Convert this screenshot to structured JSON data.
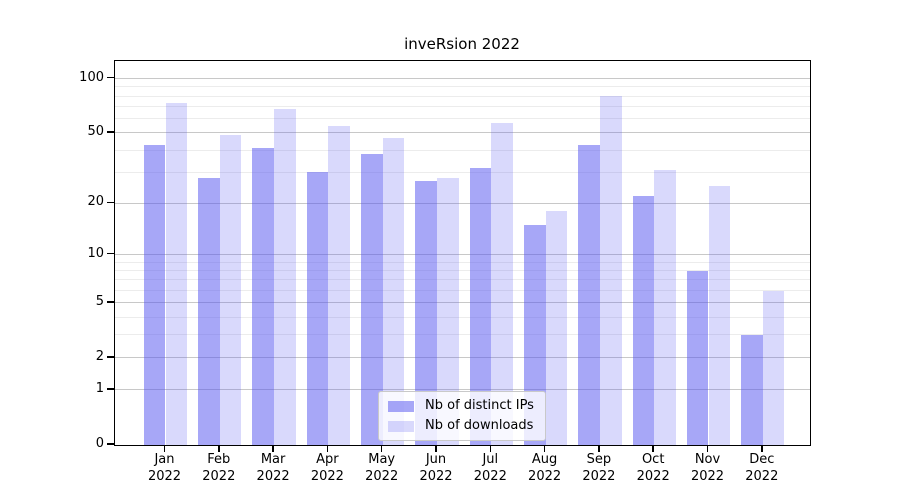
{
  "title": "inveRsion 2022",
  "colors": {
    "bar_ips": "rgba(80,80,240,0.50)",
    "bar_downloads": "rgba(80,80,240,0.22)",
    "grid_major": "#c8c8c8",
    "grid_minor": "#ececec",
    "spine": "#000000",
    "text": "#000000"
  },
  "legend": {
    "items": [
      {
        "label": "Nb of distinct IPs",
        "series": "ips"
      },
      {
        "label": "Nb of downloads",
        "series": "downloads"
      }
    ]
  },
  "y_axis": {
    "scale": "log1p",
    "tick_values": [
      100,
      50,
      20,
      10,
      5,
      2,
      1,
      0
    ],
    "tick_labels": [
      "100",
      "50",
      "20",
      "10",
      "5",
      "2",
      "1",
      "0"
    ],
    "major_grid_values": [
      1,
      2,
      5,
      10,
      20,
      50,
      100
    ],
    "minor_grid_values": [
      3,
      4,
      6,
      7,
      8,
      9,
      30,
      40,
      60,
      70,
      80,
      90
    ]
  },
  "x_axis": {
    "months": [
      "Jan",
      "Feb",
      "Mar",
      "Apr",
      "May",
      "Jun",
      "Jul",
      "Aug",
      "Sep",
      "Oct",
      "Nov",
      "Dec"
    ],
    "year": "2022"
  },
  "chart_data": {
    "type": "bar",
    "title": "inveRsion 2022",
    "categories": [
      "Jan 2022",
      "Feb 2022",
      "Mar 2022",
      "Apr 2022",
      "May 2022",
      "Jun 2022",
      "Jul 2022",
      "Aug 2022",
      "Sep 2022",
      "Oct 2022",
      "Nov 2022",
      "Dec 2022"
    ],
    "series": [
      {
        "name": "Nb of distinct IPs",
        "values": [
          43,
          28,
          41,
          30,
          38,
          27,
          32,
          15,
          43,
          22,
          8,
          3
        ]
      },
      {
        "name": "Nb of downloads",
        "values": [
          73,
          49,
          68,
          55,
          47,
          28,
          57,
          18,
          80,
          31,
          25,
          6
        ]
      }
    ],
    "yscale": "log1p",
    "ylim": [
      0,
      125
    ],
    "yticks": [
      0,
      1,
      2,
      5,
      10,
      20,
      50,
      100
    ],
    "grid": true,
    "legend_position": "lower center"
  }
}
